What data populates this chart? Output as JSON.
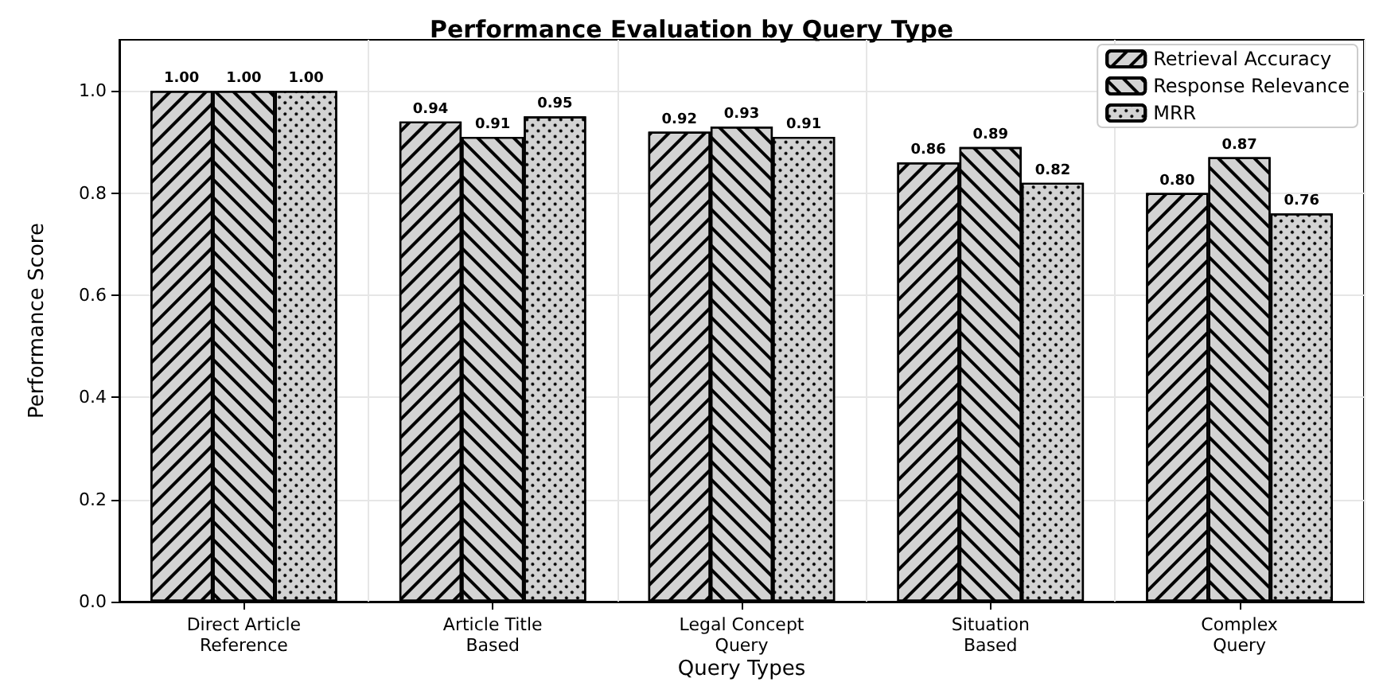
{
  "chart_data": {
    "type": "bar",
    "title": "Performance Evaluation by Query Type",
    "xlabel": "Query Types",
    "ylabel": "Performance Score",
    "categories": [
      "Direct Article\nReference",
      "Article Title\nBased",
      "Legal Concept\nQuery",
      "Situation\nBased",
      "Complex\nQuery"
    ],
    "series": [
      {
        "name": "Retrieval Accuracy",
        "color": "#d3d3d3",
        "values": [
          1.0,
          0.94,
          0.92,
          0.86,
          0.8
        ],
        "value_labels": [
          "1.00",
          "0.94",
          "0.92",
          "0.86",
          "0.80"
        ]
      },
      {
        "name": "Response Relevance",
        "color": "#d3d3d3",
        "values": [
          1.0,
          0.91,
          0.93,
          0.89,
          0.87
        ],
        "value_labels": [
          "1.00",
          "0.91",
          "0.93",
          "0.89",
          "0.87"
        ]
      },
      {
        "name": "MRR",
        "color": "#d3d3d3",
        "values": [
          1.0,
          0.95,
          0.91,
          0.82,
          0.76
        ],
        "value_labels": [
          "1.00",
          "0.95",
          "0.91",
          "0.82",
          "0.76"
        ]
      }
    ],
    "ylim": [
      0,
      1.1
    ],
    "yticks": [
      {
        "value": 0,
        "label": "0.0"
      },
      {
        "value": 0.2,
        "label": "0.2"
      },
      {
        "value": 0.4,
        "label": "0.4"
      },
      {
        "value": 0.6,
        "label": "0.6"
      },
      {
        "value": 0.8,
        "label": "0.8"
      },
      {
        "value": 1.0,
        "label": "1.0"
      }
    ],
    "grid": true,
    "legend": "top right"
  }
}
